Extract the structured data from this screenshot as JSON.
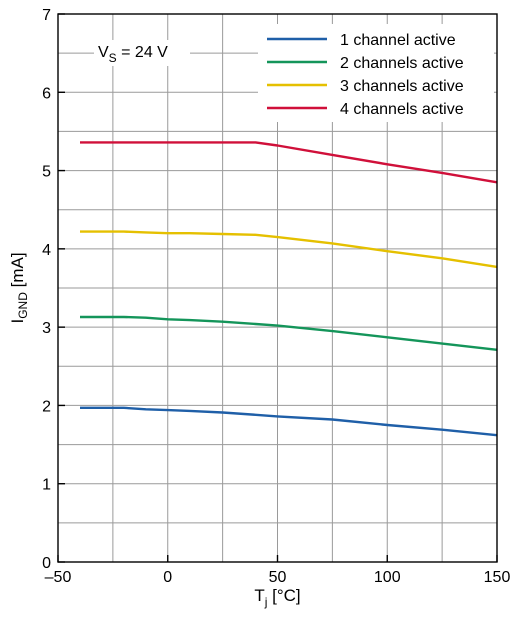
{
  "chart_data": {
    "type": "line",
    "xlabel": {
      "main": "T",
      "sub": "j",
      "unit": " [°C]"
    },
    "ylabel": {
      "main": "I",
      "sub": "GND",
      "unit": " [mA]"
    },
    "xlim": [
      -50,
      150
    ],
    "ylim": [
      0,
      7
    ],
    "x_ticks": [
      -50,
      0,
      50,
      100,
      150
    ],
    "x_tick_labels": [
      "–50",
      "0",
      "50",
      "100",
      "150"
    ],
    "y_ticks": [
      0,
      1,
      2,
      3,
      4,
      5,
      6,
      7
    ],
    "y_tick_labels": [
      "0",
      "1",
      "2",
      "3",
      "4",
      "5",
      "6",
      "7"
    ],
    "x_minor_grid_step": 25,
    "y_minor_grid_step": 0.5,
    "grid": true,
    "legend_position": "top-right",
    "annotation": {
      "main": "V",
      "sub": "S",
      "rest": " = 24 V"
    },
    "series": [
      {
        "name": "1 channel active",
        "color": "#1f5fa8",
        "x": [
          -40,
          -20,
          -10,
          0,
          10,
          25,
          40,
          50,
          75,
          100,
          125,
          150
        ],
        "y": [
          1.97,
          1.97,
          1.95,
          1.94,
          1.93,
          1.91,
          1.88,
          1.86,
          1.82,
          1.75,
          1.69,
          1.62
        ]
      },
      {
        "name": "2 channels active",
        "color": "#14955a",
        "x": [
          -40,
          -20,
          -10,
          0,
          10,
          25,
          40,
          50,
          75,
          100,
          125,
          150
        ],
        "y": [
          3.13,
          3.13,
          3.12,
          3.1,
          3.09,
          3.07,
          3.04,
          3.02,
          2.95,
          2.87,
          2.79,
          2.71
        ]
      },
      {
        "name": "3 channels active",
        "color": "#e5c000",
        "x": [
          -40,
          -20,
          -10,
          0,
          10,
          25,
          40,
          50,
          75,
          100,
          125,
          150
        ],
        "y": [
          4.22,
          4.22,
          4.21,
          4.2,
          4.2,
          4.19,
          4.18,
          4.15,
          4.07,
          3.97,
          3.88,
          3.77
        ]
      },
      {
        "name": "4 channels active",
        "color": "#d0103a",
        "x": [
          -40,
          -20,
          0,
          20,
          40,
          50,
          75,
          100,
          125,
          150
        ],
        "y": [
          5.36,
          5.36,
          5.36,
          5.36,
          5.36,
          5.32,
          5.2,
          5.08,
          4.97,
          4.85
        ]
      }
    ]
  }
}
